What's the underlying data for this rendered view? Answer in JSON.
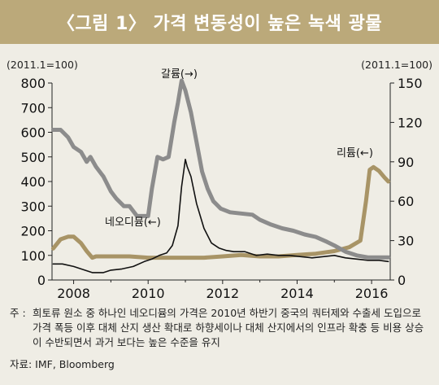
{
  "title": "〈그림 1〉 가격 변동성이 높은 녹색 광물",
  "note_marker": "주 :",
  "note_text": "희토류 원소 중 하나인 네오디뮴의 가격은 2010년 하반기 중국의 쿼터제와 수출세 도입으로 가격 폭등 이후 대체 산지 생산 확대로 하향세이나 대체 산지에서의 인프라 확충 등 비용 상승이 수반되면서 과거 보다는 높은 수준을 유지",
  "source": "자료: IMF, Bloomberg",
  "colors": {
    "banner": "#bba97a",
    "background": "#efede5",
    "gallium": "#8c8c8c",
    "lithium": "#a89466",
    "neodymium": "#111111"
  },
  "chart_data": {
    "type": "line",
    "left_axis_label": "(2011.1=100)",
    "right_axis_label": "(2011.1=100)",
    "left_ylim": [
      0,
      800
    ],
    "right_ylim": [
      0,
      150
    ],
    "left_ticks": [
      "0",
      "100",
      "200",
      "300",
      "400",
      "500",
      "600",
      "700",
      "800"
    ],
    "right_ticks": [
      "0",
      "30",
      "60",
      "90",
      "120",
      "150"
    ],
    "xlim": [
      2007.42,
      2016.5
    ],
    "x_ticks": [
      "2008",
      "2010",
      "2012",
      "2014",
      "2016"
    ],
    "series": [
      {
        "name": "갈륨(→)",
        "axis": "left",
        "color": "#8c8c8c",
        "x": [
          2007.45,
          2007.65,
          2007.85,
          2008.0,
          2008.2,
          2008.35,
          2008.45,
          2008.6,
          2008.8,
          2009.0,
          2009.15,
          2009.35,
          2009.5,
          2009.7,
          2009.85,
          2010.0,
          2010.1,
          2010.25,
          2010.4,
          2010.55,
          2010.7,
          2010.8,
          2010.9,
          2011.0,
          2011.15,
          2011.3,
          2011.45,
          2011.6,
          2011.75,
          2011.95,
          2012.2,
          2012.5,
          2012.8,
          2013.0,
          2013.3,
          2013.6,
          2013.9,
          2014.2,
          2014.5,
          2014.8,
          2015.0,
          2015.3,
          2015.6,
          2015.9,
          2016.1,
          2016.3,
          2016.45
        ],
        "y": [
          610,
          610,
          580,
          540,
          520,
          480,
          500,
          460,
          420,
          360,
          330,
          300,
          300,
          260,
          260,
          260,
          370,
          500,
          490,
          500,
          640,
          720,
          810,
          770,
          680,
          560,
          440,
          370,
          320,
          290,
          275,
          270,
          265,
          245,
          225,
          210,
          200,
          185,
          175,
          155,
          140,
          115,
          100,
          92,
          92,
          92,
          92
        ]
      },
      {
        "name": "리튬(←)",
        "axis": "right",
        "color": "#a89466",
        "x": [
          2007.45,
          2007.65,
          2007.85,
          2008.0,
          2008.2,
          2008.35,
          2008.5,
          2008.6,
          2008.8,
          2009.0,
          2009.5,
          2010.0,
          2010.5,
          2011.0,
          2011.5,
          2012.0,
          2012.5,
          2013.0,
          2013.5,
          2014.0,
          2014.5,
          2015.0,
          2015.4,
          2015.7,
          2015.85,
          2015.95,
          2016.05,
          2016.2,
          2016.35,
          2016.45
        ],
        "y": [
          24,
          31,
          33,
          33,
          28,
          22,
          17,
          18,
          18,
          18,
          18,
          17,
          17,
          17,
          17,
          18,
          19,
          18,
          18,
          19,
          20,
          22,
          25,
          30,
          60,
          84,
          86,
          83,
          78,
          75
        ]
      },
      {
        "name": "네오디뮴(←)",
        "axis": "left",
        "color": "#111111",
        "x": [
          2007.45,
          2007.7,
          2008.0,
          2008.3,
          2008.5,
          2008.8,
          2009.0,
          2009.3,
          2009.6,
          2009.9,
          2010.1,
          2010.3,
          2010.5,
          2010.65,
          2010.8,
          2010.9,
          2011.0,
          2011.05,
          2011.15,
          2011.3,
          2011.5,
          2011.7,
          2011.9,
          2012.1,
          2012.3,
          2012.6,
          2012.9,
          2013.2,
          2013.5,
          2013.8,
          2014.1,
          2014.4,
          2014.7,
          2015.0,
          2015.3,
          2015.6,
          2015.9,
          2016.2,
          2016.45
        ],
        "y": [
          65,
          65,
          55,
          40,
          30,
          30,
          40,
          45,
          55,
          75,
          85,
          100,
          110,
          140,
          220,
          380,
          490,
          460,
          420,
          310,
          210,
          150,
          130,
          120,
          115,
          115,
          100,
          105,
          100,
          100,
          95,
          90,
          95,
          100,
          90,
          85,
          80,
          80,
          75
        ]
      }
    ]
  }
}
